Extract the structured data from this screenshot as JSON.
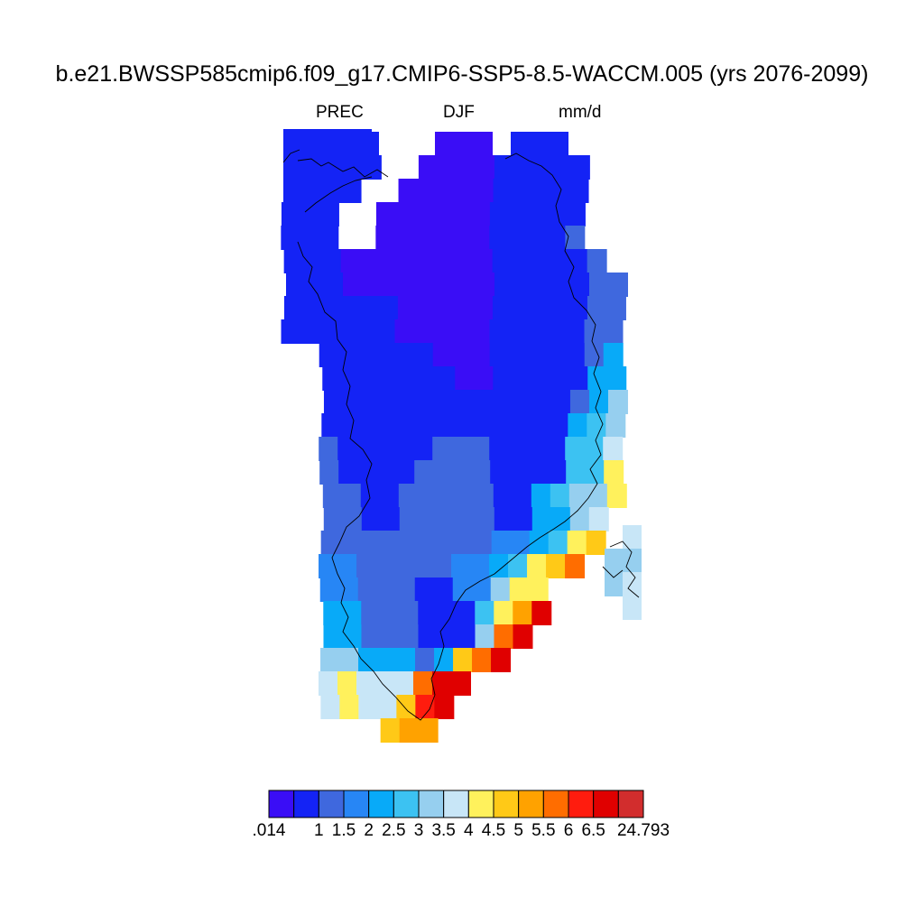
{
  "title": "b.e21.BWSSP585cmip6.f09_g17.CMIP6-SSP5-8.5-WACCM.005 (yrs 2076-2099)",
  "subtitle": {
    "variable": "PREC",
    "season": "DJF",
    "units": "mm/d"
  },
  "colorbar": {
    "colors": [
      "#3a0df6",
      "#1423f5",
      "#3f68de",
      "#2786f5",
      "#08aaf8",
      "#3cc2f2",
      "#96cfef",
      "#c8e6f7",
      "#fff15c",
      "#ffc917",
      "#ffa200",
      "#ff6d00",
      "#ff1c0e",
      "#e00000",
      "#d22d2d"
    ],
    "labels": [
      ".014",
      "1",
      "1.5",
      "2",
      "2.5",
      "3",
      "3.5",
      "4",
      "4.5",
      "5",
      "5.5",
      "6",
      "6.5",
      "24.793"
    ]
  },
  "map": {
    "region": "Greenland",
    "field": "precipitation",
    "grid_rows": [
      [
        [
          "b",
          0,
          4
        ],
        [
          "a",
          8,
          10
        ],
        [
          "b",
          12,
          14
        ]
      ],
      [
        [
          "b",
          0,
          4
        ],
        [
          "a",
          7,
          10
        ],
        [
          "b",
          11,
          15
        ]
      ],
      [
        [
          "b",
          0,
          3
        ],
        [
          "a",
          6,
          10
        ],
        [
          "b",
          11,
          15
        ]
      ],
      [
        [
          "b",
          0,
          2
        ],
        [
          "a",
          5,
          10
        ],
        [
          "b",
          11,
          15
        ]
      ],
      [
        [
          "b",
          0,
          2
        ],
        [
          "a",
          5,
          10
        ],
        [
          "b",
          11,
          14
        ],
        [
          "c",
          15,
          15
        ]
      ],
      [
        [
          "b",
          0,
          2
        ],
        [
          "a",
          3,
          10
        ],
        [
          "b",
          11,
          15
        ],
        [
          "c",
          16,
          16
        ]
      ],
      [
        [
          "b",
          0,
          2
        ],
        [
          "a",
          3,
          10
        ],
        [
          "b",
          11,
          15
        ],
        [
          "c",
          16,
          17
        ]
      ],
      [
        [
          "b",
          0,
          5
        ],
        [
          "a",
          6,
          10
        ],
        [
          "b",
          11,
          15
        ],
        [
          "c",
          16,
          17
        ]
      ],
      [
        [
          "b",
          0,
          5
        ],
        [
          "a",
          6,
          10
        ],
        [
          "b",
          11,
          15
        ],
        [
          "c",
          16,
          17
        ]
      ],
      [
        [
          "b",
          2,
          7
        ],
        [
          "a",
          8,
          10
        ],
        [
          "b",
          11,
          15
        ],
        [
          "c",
          16,
          16
        ],
        [
          "e",
          17,
          17
        ]
      ],
      [
        [
          "b",
          2,
          8
        ],
        [
          "a",
          9,
          10
        ],
        [
          "b",
          11,
          15
        ],
        [
          "e",
          16,
          17
        ]
      ],
      [
        [
          "b",
          2,
          14
        ],
        [
          "c",
          15,
          15
        ],
        [
          "e",
          16,
          16
        ],
        [
          "g",
          17,
          17
        ]
      ],
      [
        [
          "b",
          2,
          14
        ],
        [
          "e",
          15,
          15
        ],
        [
          "f",
          16,
          16
        ],
        [
          "g",
          17,
          17
        ]
      ],
      [
        [
          "c",
          2,
          2
        ],
        [
          "b",
          3,
          7
        ],
        [
          "c",
          8,
          10
        ],
        [
          "b",
          11,
          14
        ],
        [
          "f",
          15,
          16
        ],
        [
          "h",
          17,
          17
        ]
      ],
      [
        [
          "c",
          2,
          2
        ],
        [
          "b",
          3,
          6
        ],
        [
          "c",
          7,
          10
        ],
        [
          "b",
          11,
          14
        ],
        [
          "f",
          15,
          16
        ],
        [
          "i",
          17,
          17
        ]
      ],
      [
        [
          "c",
          2,
          3
        ],
        [
          "b",
          4,
          5
        ],
        [
          "c",
          6,
          10
        ],
        [
          "b",
          11,
          12
        ],
        [
          "e",
          13,
          13
        ],
        [
          "f",
          14,
          14
        ],
        [
          "g",
          15,
          16
        ],
        [
          "i",
          17,
          17
        ]
      ],
      [
        [
          "c",
          2,
          3
        ],
        [
          "b",
          4,
          5
        ],
        [
          "c",
          6,
          10
        ],
        [
          "b",
          11,
          12
        ],
        [
          "e",
          13,
          14
        ],
        [
          "g",
          15,
          15
        ],
        [
          "h",
          16,
          16
        ]
      ],
      [
        [
          "c",
          2,
          10
        ],
        [
          "d",
          11,
          12
        ],
        [
          "e",
          13,
          13
        ],
        [
          "f",
          14,
          14
        ],
        [
          "i",
          15,
          15
        ],
        [
          "j",
          16,
          16
        ]
      ],
      [
        [
          "d",
          2,
          3
        ],
        [
          "c",
          4,
          8
        ],
        [
          "d",
          9,
          10
        ],
        [
          "e",
          11,
          11
        ],
        [
          "f",
          12,
          12
        ],
        [
          "i",
          13,
          13
        ],
        [
          "j",
          14,
          14
        ],
        [
          "l",
          15,
          15
        ]
      ],
      [
        [
          "d",
          2,
          3
        ],
        [
          "c",
          4,
          6
        ],
        [
          "b",
          7,
          8
        ],
        [
          "d",
          9,
          10
        ],
        [
          "g",
          11,
          11
        ],
        [
          "i",
          12,
          12
        ],
        [
          "i",
          13,
          13
        ]
      ],
      [
        [
          "e",
          2,
          3
        ],
        [
          "c",
          4,
          6
        ],
        [
          "b",
          7,
          9
        ],
        [
          "f",
          10,
          10
        ],
        [
          "i",
          11,
          11
        ],
        [
          "k",
          12,
          12
        ],
        [
          "n",
          13,
          13
        ]
      ],
      [
        [
          "e",
          2,
          3
        ],
        [
          "c",
          4,
          6
        ],
        [
          "b",
          7,
          9
        ],
        [
          "g",
          10,
          10
        ],
        [
          "l",
          11,
          11
        ],
        [
          "n",
          12,
          12
        ]
      ],
      [
        [
          "g",
          2,
          3
        ],
        [
          "e",
          4,
          6
        ],
        [
          "c",
          7,
          7
        ],
        [
          "e",
          8,
          8
        ],
        [
          "j",
          9,
          9
        ],
        [
          "l",
          10,
          10
        ],
        [
          "n",
          11,
          11
        ]
      ],
      [
        [
          "h",
          2,
          2
        ],
        [
          "i",
          3,
          3
        ],
        [
          "h",
          4,
          6
        ],
        [
          "l",
          7,
          7
        ],
        [
          "n",
          8,
          9
        ]
      ],
      [
        [
          "h",
          2,
          2
        ],
        [
          "i",
          3,
          3
        ],
        [
          "h",
          4,
          5
        ],
        [
          "j",
          6,
          6
        ],
        [
          "m",
          7,
          7
        ],
        [
          "n",
          8,
          8
        ]
      ],
      [
        [
          "j",
          5,
          5
        ],
        [
          "k",
          6,
          7
        ]
      ]
    ],
    "island_cells": [
      [
        16,
        1,
        "h"
      ],
      [
        17,
        0,
        "g"
      ],
      [
        17,
        1,
        "g"
      ],
      [
        18,
        0,
        "g"
      ],
      [
        18,
        1,
        "h"
      ],
      [
        19,
        1,
        "h"
      ]
    ],
    "nw_region": "b"
  }
}
